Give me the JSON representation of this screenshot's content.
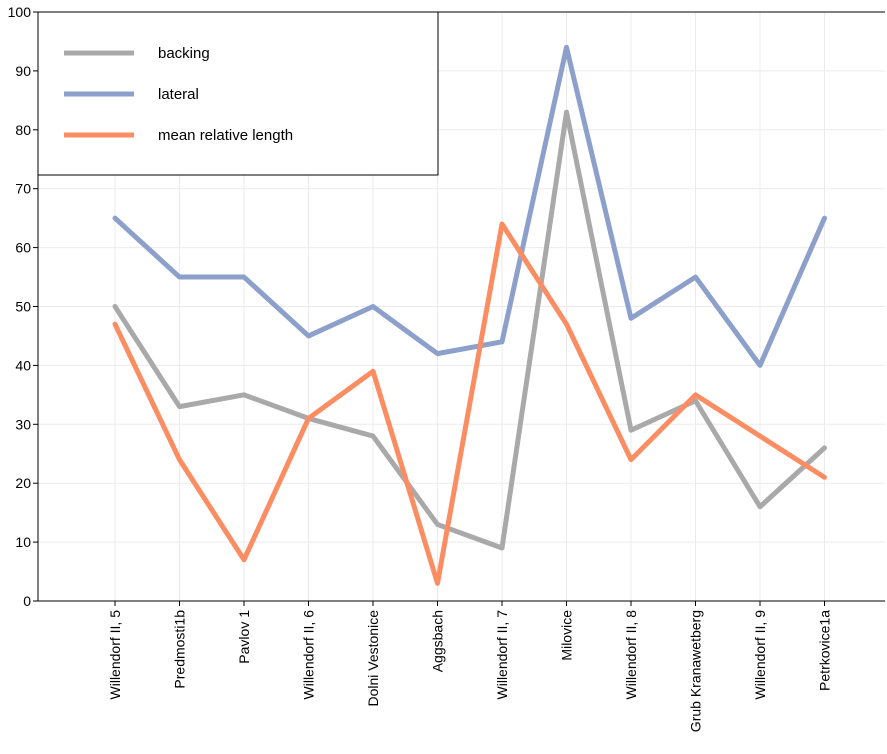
{
  "chart_data": {
    "type": "line",
    "title": "",
    "xlabel": "",
    "ylabel": "",
    "ylim": [
      0,
      100
    ],
    "yticks": [
      0,
      10,
      20,
      30,
      40,
      50,
      60,
      70,
      80,
      90,
      100
    ],
    "grid": true,
    "legend_position": "top-left",
    "categories": [
      "Willendorf II, 5",
      "Predmosti1b",
      "Pavlov 1",
      "Willendorf II, 6",
      "Dolni Vestonice",
      "Aggsbach",
      "Willendorf II, 7",
      "Milovice",
      "Willendorf II, 8",
      "Grub Kranawetberg",
      "Willendorf II, 9",
      "Petrkovice1a"
    ],
    "series": [
      {
        "name": "backing",
        "color": "#a9a9a9",
        "values": [
          50,
          33,
          35,
          31,
          28,
          13,
          9,
          83,
          29,
          34,
          16,
          26
        ]
      },
      {
        "name": "lateral",
        "color": "#8da0cb",
        "values": [
          65,
          55,
          55,
          45,
          50,
          42,
          44,
          94,
          48,
          55,
          40,
          65
        ]
      },
      {
        "name": "mean relative length",
        "color": "#fc8d62",
        "values": [
          47,
          24,
          7,
          31,
          39,
          3,
          64,
          47,
          24,
          35,
          28,
          21
        ]
      }
    ]
  }
}
